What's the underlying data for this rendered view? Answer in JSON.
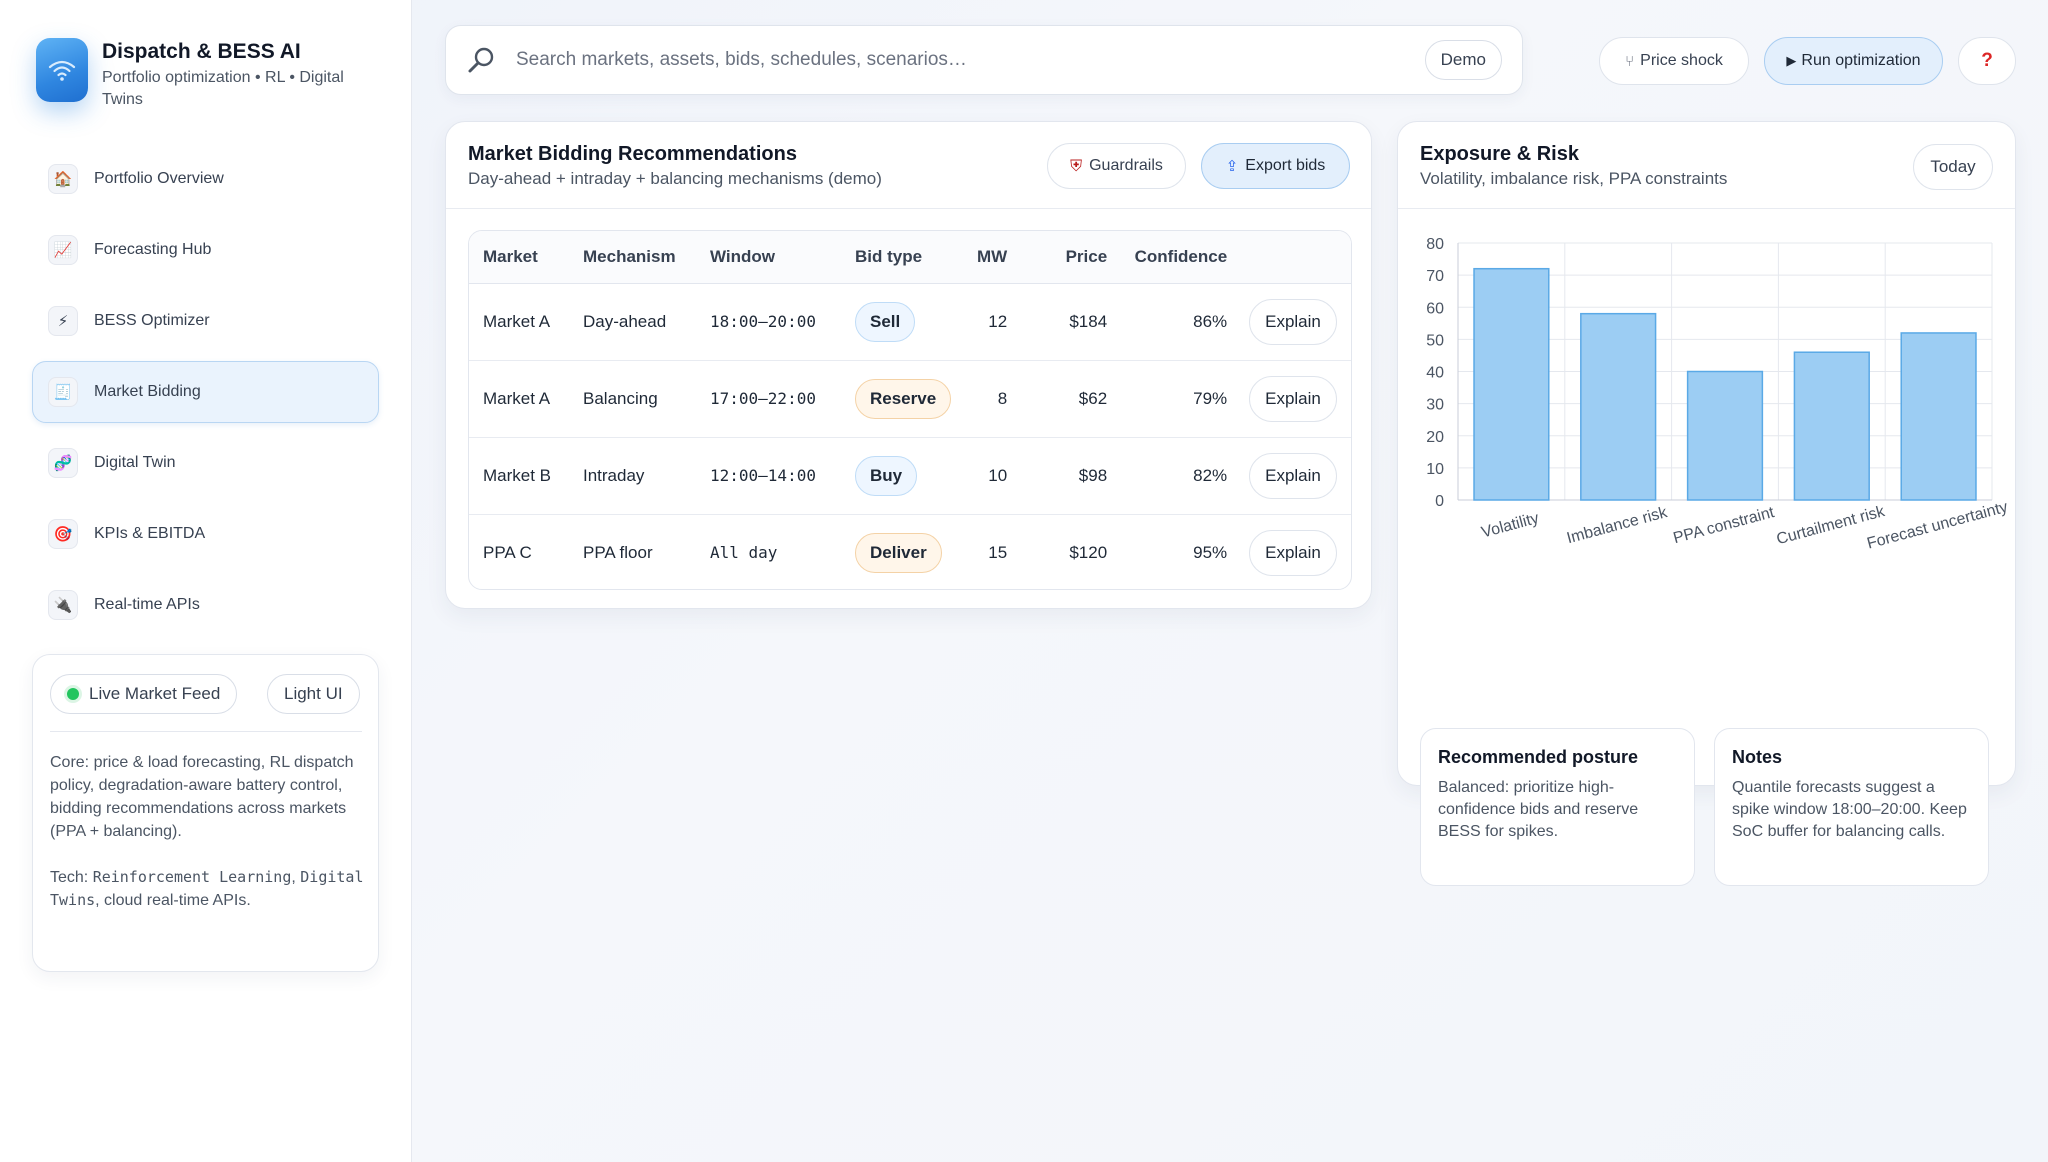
{
  "brand": {
    "title": "Dispatch & BESS AI",
    "subtitle": "Portfolio optimization • RL • Digital Twins"
  },
  "nav": [
    {
      "label": "Portfolio Overview",
      "icon": "🏠"
    },
    {
      "label": "Forecasting Hub",
      "icon": "📈"
    },
    {
      "label": "BESS Optimizer",
      "icon": "⚡"
    },
    {
      "label": "Market Bidding",
      "icon": "🧾",
      "active": true
    },
    {
      "label": "Digital Twin",
      "icon": "🧬"
    },
    {
      "label": "KPIs & EBITDA",
      "icon": "🎯"
    },
    {
      "label": "Real-time APIs",
      "icon": "🔌"
    }
  ],
  "status": {
    "live_label": "Live Market Feed",
    "theme_label": "Light UI",
    "core_text": "Core: price & load forecasting, RL dispatch policy, degradation-aware battery control, bidding recommendations across markets (PPA + balancing).",
    "tech_prefix": "Tech: ",
    "tech_mono1": "Reinforcement Learning",
    "tech_sep": ", ",
    "tech_mono2": "Digital Twins",
    "tech_suffix": ", cloud real-time APIs."
  },
  "search": {
    "placeholder": "Search markets, assets, bids, schedules, scenarios…",
    "demo_label": "Demo"
  },
  "topbar": {
    "price_shock": "Price shock",
    "run_optimization": "Run optimization",
    "help": "?"
  },
  "bidding": {
    "title": "Market Bidding Recommendations",
    "subtitle": "Day-ahead + intraday + balancing mechanisms (demo)",
    "guardrails": "Guardrails",
    "export": "Export bids",
    "columns": [
      "Market",
      "Mechanism",
      "Window",
      "Bid type",
      "MW",
      "Price",
      "Confidence"
    ],
    "rows": [
      {
        "market": "Market A",
        "mechanism": "Day-ahead",
        "window": "18:00–20:00",
        "bid_type": "Sell",
        "tone": "blue",
        "mw": "12",
        "price": "$184",
        "confidence": "86%",
        "action": "Explain"
      },
      {
        "market": "Market A",
        "mechanism": "Balancing",
        "window": "17:00–22:00",
        "bid_type": "Reserve",
        "tone": "orange",
        "mw": "8",
        "price": "$62",
        "confidence": "79%",
        "action": "Explain"
      },
      {
        "market": "Market B",
        "mechanism": "Intraday",
        "window": "12:00–14:00",
        "bid_type": "Buy",
        "tone": "blue",
        "mw": "10",
        "price": "$98",
        "confidence": "82%",
        "action": "Explain"
      },
      {
        "market": "PPA C",
        "mechanism": "PPA floor",
        "window": "All day",
        "bid_type": "Deliver",
        "tone": "orange",
        "mw": "15",
        "price": "$120",
        "confidence": "95%",
        "action": "Explain"
      }
    ]
  },
  "exposure": {
    "title": "Exposure & Risk",
    "subtitle": "Volatility, imbalance risk, PPA constraints",
    "today": "Today",
    "posture_title": "Recommended posture",
    "posture_text": "Balanced: prioritize high-confidence bids and reserve BESS for spikes.",
    "notes_title": "Notes",
    "notes_text": "Quantile forecasts suggest a spike window 18:00–20:00. Keep SoC buffer for balancing calls."
  },
  "chart_data": {
    "type": "bar",
    "categories": [
      "Volatility",
      "Imbalance risk",
      "PPA constraint",
      "Curtailment risk",
      "Forecast uncertainty"
    ],
    "values": [
      72,
      58,
      40,
      46,
      52
    ],
    "ylim": [
      0,
      80
    ],
    "yticks": [
      0,
      10,
      20,
      30,
      40,
      50,
      60,
      70,
      80
    ],
    "grid": true,
    "bar_color": "#9ccdf3",
    "bar_stroke": "#5aa9e6"
  }
}
